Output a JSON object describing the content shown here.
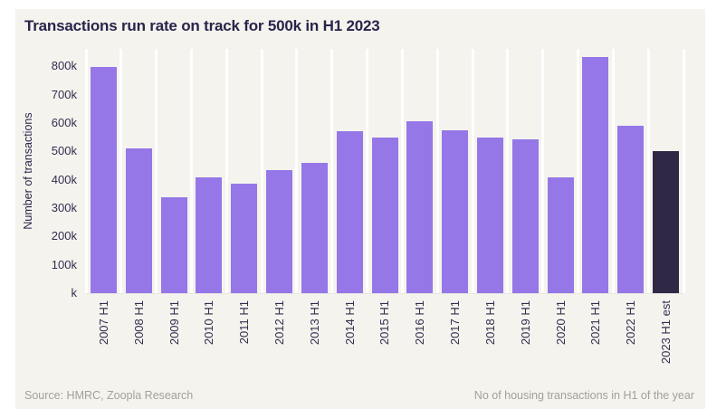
{
  "page": {
    "background": "#ffffff",
    "card_background": "#f5f3ee"
  },
  "header": {
    "title": "Transactions run rate on track for 500k in H1 2023"
  },
  "chart_data": {
    "type": "bar",
    "title": "Transactions run rate on track for 500k in H1 2023",
    "xlabel": "",
    "ylabel": "Number of transactions",
    "categories": [
      "2007 H1",
      "2008 H1",
      "2009 H1",
      "2010 H1",
      "2011 H1",
      "2012 H1",
      "2013 H1",
      "2014 H1",
      "2015 H1",
      "2016 H1",
      "2017 H1",
      "2018 H1",
      "2019 H1",
      "2020 H1",
      "2021 H1",
      "2022 H1",
      "2023 H1 est"
    ],
    "values": [
      797,
      510,
      337,
      408,
      388,
      434,
      460,
      572,
      548,
      608,
      576,
      550,
      542,
      408,
      832,
      592,
      500
    ],
    "unit": "thousands of transactions",
    "ylim": [
      0,
      862
    ],
    "ytick_values": [
      0,
      100,
      200,
      300,
      400,
      500,
      600,
      700,
      800
    ],
    "ytick_labels": [
      "k",
      "100k",
      "200k",
      "300k",
      "400k",
      "500k",
      "600k",
      "700k",
      "800k"
    ],
    "grid": "vertical gridlines only, white on beige",
    "legend": "none",
    "bar_color": "#9577e7",
    "highlight_color": "#2f2945",
    "highlight_index": 16
  },
  "footer": {
    "source": "Source: HMRC, Zoopla Research",
    "note": "No of housing transactions in H1 of the year"
  }
}
